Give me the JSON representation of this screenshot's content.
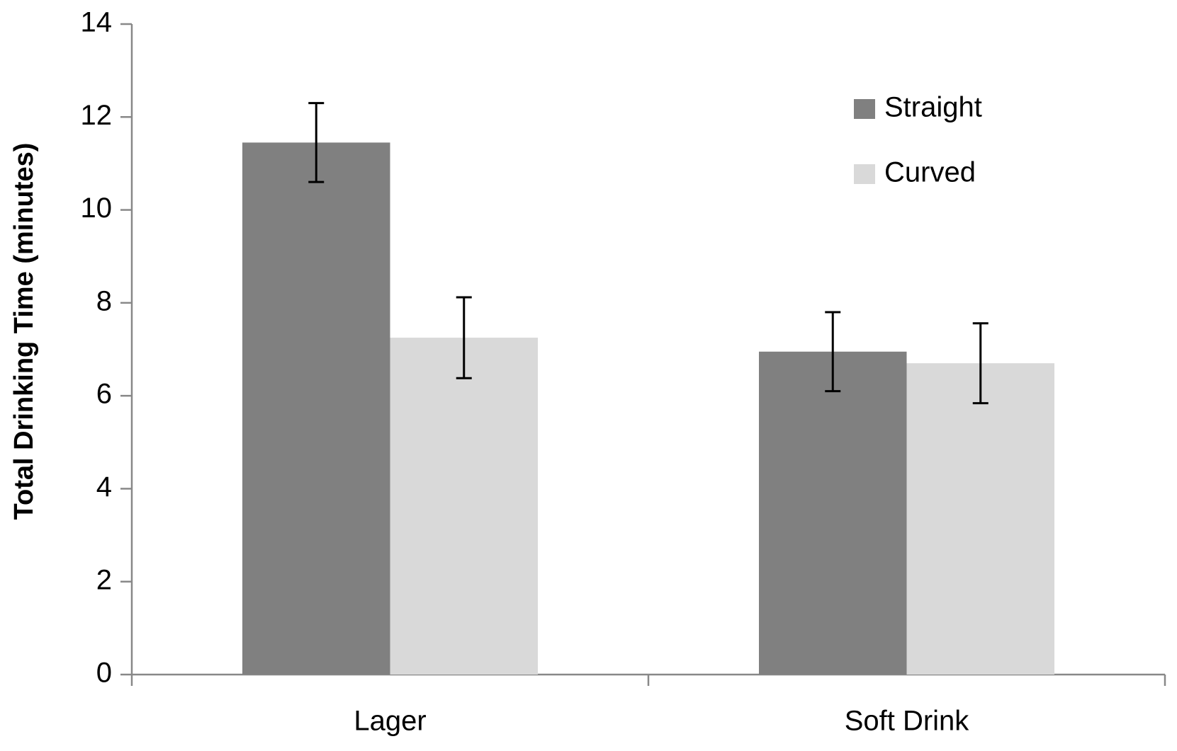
{
  "chart_data": {
    "type": "bar",
    "y_label": "Total Drinking Time (minutes)",
    "categories": [
      "Lager",
      "Soft Drink"
    ],
    "series": [
      {
        "name": "Straight",
        "color": "#808080",
        "values": [
          11.45,
          6.95
        ],
        "errors": [
          0.85,
          0.85
        ]
      },
      {
        "name": "Curved",
        "color": "#d9d9d9",
        "values": [
          7.25,
          6.7
        ],
        "errors": [
          0.87,
          0.86
        ]
      }
    ],
    "ylim": [
      0,
      14
    ],
    "yticks": [
      0,
      2,
      4,
      6,
      8,
      10,
      12,
      14
    ]
  }
}
